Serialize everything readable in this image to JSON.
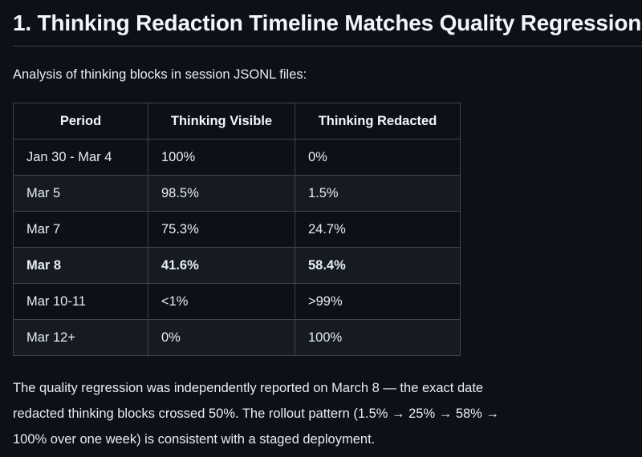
{
  "heading": "1. Thinking Redaction Timeline Matches Quality Regression",
  "intro": "Analysis of thinking blocks in session JSONL files:",
  "table": {
    "columns": [
      "Period",
      "Thinking Visible",
      "Thinking Redacted"
    ],
    "rows": [
      {
        "period": "Jan 30 - Mar 4",
        "visible": "100%",
        "redacted": "0%",
        "bold": false
      },
      {
        "period": "Mar 5",
        "visible": "98.5%",
        "redacted": "1.5%",
        "bold": false
      },
      {
        "period": "Mar 7",
        "visible": "75.3%",
        "redacted": "24.7%",
        "bold": false
      },
      {
        "period": "Mar 8",
        "visible": "41.6%",
        "redacted": "58.4%",
        "bold": true
      },
      {
        "period": "Mar 10-11",
        "visible": "<1%",
        "redacted": ">99%",
        "bold": false
      },
      {
        "period": "Mar 12+",
        "visible": "0%",
        "redacted": "100%",
        "bold": false
      }
    ]
  },
  "note_lines": [
    "The quality regression was independently reported on March 8 — the exact date",
    "redacted thinking blocks crossed 50%. The rollout pattern (1.5% → 25% → 58% →",
    "100% over one week) is consistent with a staged deployment."
  ],
  "note_full_text": "The quality regression was independently reported on March 8 — the exact date redacted thinking blocks crossed 50%. The rollout pattern (1.5% → 25% → 58% → 100% over one week) is consistent with a staged deployment.",
  "colors": {
    "background": "#0d1117",
    "row_stripe": "#161b22",
    "table_border": "#3d444d",
    "body_text": "#e6edf3",
    "heading_text": "#f0f6fc"
  }
}
